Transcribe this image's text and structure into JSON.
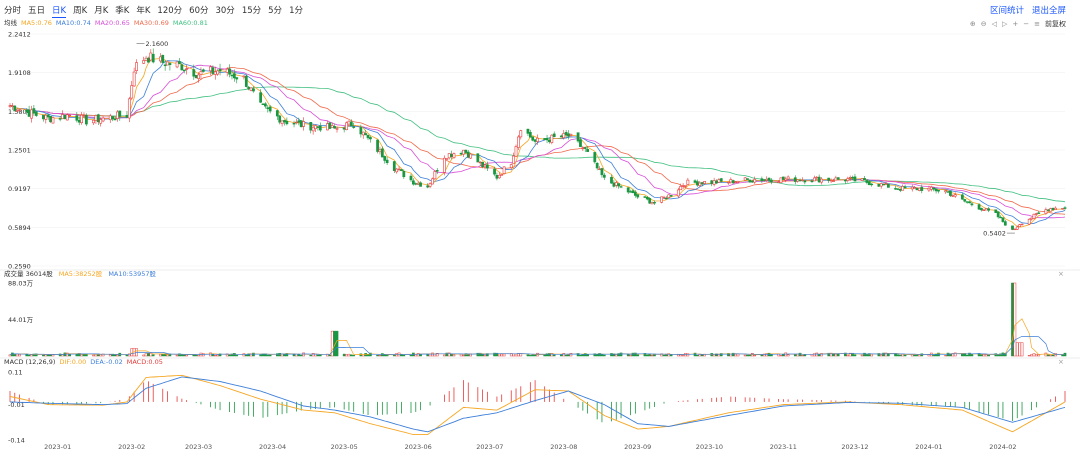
{
  "toolbar": {
    "periods": [
      "分时",
      "五日",
      "日K",
      "周K",
      "月K",
      "季K",
      "年K",
      "120分",
      "60分",
      "30分",
      "15分",
      "5分",
      "1分"
    ],
    "active_period": "日K",
    "actions": [
      "区间统计",
      "退出全屏"
    ],
    "tools": [
      "⊕",
      "⊖",
      "◁",
      "▷",
      "+",
      "−",
      "≡"
    ],
    "adjust_label": "前复权"
  },
  "colors": {
    "up": "#e63a3a",
    "down": "#1a9641",
    "ma5": "#f5a623",
    "ma10": "#3d7fd9",
    "ma20": "#d84fd8",
    "ma30": "#f06a4c",
    "ma60": "#3fbf7f",
    "dif": "#f5a623",
    "dea": "#3d7fd9"
  },
  "ma_legend": {
    "label": "均线",
    "items": [
      {
        "text": "MA5:0.76",
        "color": "#f5a623"
      },
      {
        "text": "MA10:0.74",
        "color": "#3d7fd9"
      },
      {
        "text": "MA20:0.65",
        "color": "#d84fd8"
      },
      {
        "text": "MA30:0.69",
        "color": "#f06a4c"
      },
      {
        "text": "MA60:0.81",
        "color": "#3fbf7f"
      }
    ]
  },
  "volume_legend": {
    "items": [
      {
        "text": "成交量 36014股",
        "color": "#333333"
      },
      {
        "text": "MA5:38252股",
        "color": "#f5a623"
      },
      {
        "text": "MA10:53957股",
        "color": "#3d7fd9"
      }
    ]
  },
  "macd_legend": {
    "items": [
      {
        "text": "MACD (12,26,9)",
        "color": "#333333"
      },
      {
        "text": "DIF:0.00",
        "color": "#f5a623"
      },
      {
        "text": "DEA:-0.02",
        "color": "#3d7fd9"
      },
      {
        "text": "MACD:0.05",
        "color": "#e63a3a"
      }
    ]
  },
  "chart_data": [
    {
      "type": "line",
      "title": "",
      "chart_kind": "candlestick",
      "y_ticks": [
        2.2412,
        1.9108,
        1.5804,
        1.2501,
        0.9197,
        0.5894,
        0.259
      ],
      "y_tick_labels": [
        "2.2412",
        "1.9108",
        "1.5804",
        "1.2501",
        "0.9197",
        "0.5894",
        "0.2590"
      ],
      "ylim": [
        0.259,
        2.2412
      ],
      "annotations": [
        {
          "text": "2.1600",
          "value": 2.16,
          "date": "2023-02-03"
        },
        {
          "text": "0.5402",
          "value": 0.5402,
          "date": "2024-02-06"
        }
      ],
      "x_ticks": [
        "2023-01",
        "2023-02",
        "2023-03",
        "2023-04",
        "2023-05",
        "2023-06",
        "2023-07",
        "2023-08",
        "2023-09",
        "2023-10",
        "2023-11",
        "2023-12",
        "2024-01",
        "2024-02"
      ],
      "close_keypoints": [
        {
          "x": "2022-12-12",
          "y": 1.63
        },
        {
          "x": "2022-12-20",
          "y": 1.57
        },
        {
          "x": "2022-12-28",
          "y": 1.52
        },
        {
          "x": "2023-01-06",
          "y": 1.55
        },
        {
          "x": "2023-01-13",
          "y": 1.5
        },
        {
          "x": "2023-01-20",
          "y": 1.52
        },
        {
          "x": "2023-01-30",
          "y": 1.55
        },
        {
          "x": "2023-02-02",
          "y": 1.95
        },
        {
          "x": "2023-02-07",
          "y": 2.05
        },
        {
          "x": "2023-02-14",
          "y": 2.0
        },
        {
          "x": "2023-02-22",
          "y": 1.97
        },
        {
          "x": "2023-03-01",
          "y": 1.9
        },
        {
          "x": "2023-03-10",
          "y": 1.93
        },
        {
          "x": "2023-03-20",
          "y": 1.86
        },
        {
          "x": "2023-03-27",
          "y": 1.62
        },
        {
          "x": "2023-04-06",
          "y": 1.5
        },
        {
          "x": "2023-04-14",
          "y": 1.46
        },
        {
          "x": "2023-04-21",
          "y": 1.45
        },
        {
          "x": "2023-04-27",
          "y": 1.43
        },
        {
          "x": "2023-05-05",
          "y": 1.48
        },
        {
          "x": "2023-05-12",
          "y": 1.32
        },
        {
          "x": "2023-05-22",
          "y": 1.1
        },
        {
          "x": "2023-05-30",
          "y": 0.98
        },
        {
          "x": "2023-06-05",
          "y": 0.94
        },
        {
          "x": "2023-06-12",
          "y": 1.2
        },
        {
          "x": "2023-06-20",
          "y": 1.25
        },
        {
          "x": "2023-06-29",
          "y": 1.1
        },
        {
          "x": "2023-07-04",
          "y": 1.02
        },
        {
          "x": "2023-07-10",
          "y": 1.15
        },
        {
          "x": "2023-07-14",
          "y": 1.45
        },
        {
          "x": "2023-07-20",
          "y": 1.32
        },
        {
          "x": "2023-07-27",
          "y": 1.35
        },
        {
          "x": "2023-08-03",
          "y": 1.37
        },
        {
          "x": "2023-08-10",
          "y": 1.25
        },
        {
          "x": "2023-08-18",
          "y": 1.0
        },
        {
          "x": "2023-08-25",
          "y": 0.93
        },
        {
          "x": "2023-09-01",
          "y": 0.85
        },
        {
          "x": "2023-09-08",
          "y": 0.8
        },
        {
          "x": "2023-09-14",
          "y": 0.86
        },
        {
          "x": "2023-09-21",
          "y": 0.97
        },
        {
          "x": "2023-10-09",
          "y": 0.98
        },
        {
          "x": "2023-10-20",
          "y": 1.0
        },
        {
          "x": "2023-11-01",
          "y": 1.0
        },
        {
          "x": "2023-11-14",
          "y": 1.0
        },
        {
          "x": "2023-11-28",
          "y": 1.0
        },
        {
          "x": "2023-12-08",
          "y": 0.97
        },
        {
          "x": "2023-12-20",
          "y": 0.92
        },
        {
          "x": "2023-12-29",
          "y": 0.92
        },
        {
          "x": "2024-01-08",
          "y": 0.9
        },
        {
          "x": "2024-01-15",
          "y": 0.82
        },
        {
          "x": "2024-01-22",
          "y": 0.76
        },
        {
          "x": "2024-01-29",
          "y": 0.7
        },
        {
          "x": "2024-02-05",
          "y": 0.56
        },
        {
          "x": "2024-02-08",
          "y": 0.62
        },
        {
          "x": "2024-02-20",
          "y": 0.75
        },
        {
          "x": "2024-02-27",
          "y": 0.76
        }
      ]
    },
    {
      "type": "bar",
      "title": "",
      "series_name": "成交量",
      "y_tick_labels": [
        "88.03万",
        "44.01万"
      ],
      "ylim": [
        0,
        880300
      ],
      "spikes": [
        {
          "x": "2023-02-02",
          "y": 90000
        },
        {
          "x": "2023-04-27",
          "y": 300000
        },
        {
          "x": "2024-02-06",
          "y": 880300
        },
        {
          "x": "2024-02-08",
          "y": 160000
        }
      ]
    },
    {
      "type": "bar",
      "title": "",
      "series_name": "MACD",
      "y_tick_labels": [
        "0.11",
        "-0.01",
        "-0.14"
      ],
      "ylim": [
        -0.14,
        0.11
      ],
      "macd_keypoints": [
        {
          "x": "2022-12-12",
          "dif": 0.02,
          "dea": 0.0
        },
        {
          "x": "2022-12-28",
          "dif": -0.01,
          "dea": -0.005
        },
        {
          "x": "2023-01-20",
          "dif": -0.012,
          "dea": -0.01
        },
        {
          "x": "2023-01-30",
          "dif": 0.0,
          "dea": -0.006
        },
        {
          "x": "2023-02-07",
          "dif": 0.09,
          "dea": 0.05
        },
        {
          "x": "2023-02-22",
          "dif": 0.098,
          "dea": 0.092
        },
        {
          "x": "2023-03-10",
          "dif": 0.06,
          "dea": 0.075
        },
        {
          "x": "2023-03-27",
          "dif": 0.01,
          "dea": 0.04
        },
        {
          "x": "2023-04-14",
          "dif": -0.03,
          "dea": -0.015
        },
        {
          "x": "2023-04-27",
          "dif": -0.04,
          "dea": -0.03
        },
        {
          "x": "2023-05-12",
          "dif": -0.08,
          "dea": -0.055
        },
        {
          "x": "2023-05-30",
          "dif": -0.12,
          "dea": -0.1
        },
        {
          "x": "2023-06-05",
          "dif": -0.12,
          "dea": -0.11
        },
        {
          "x": "2023-06-20",
          "dif": -0.02,
          "dea": -0.06
        },
        {
          "x": "2023-07-04",
          "dif": -0.03,
          "dea": -0.04
        },
        {
          "x": "2023-07-20",
          "dif": 0.045,
          "dea": 0.005
        },
        {
          "x": "2023-08-03",
          "dif": 0.04,
          "dea": 0.04
        },
        {
          "x": "2023-08-18",
          "dif": -0.05,
          "dea": -0.01
        },
        {
          "x": "2023-09-01",
          "dif": -0.1,
          "dea": -0.08
        },
        {
          "x": "2023-09-14",
          "dif": -0.09,
          "dea": -0.09
        },
        {
          "x": "2023-10-09",
          "dif": -0.04,
          "dea": -0.05
        },
        {
          "x": "2023-11-01",
          "dif": -0.01,
          "dea": -0.015
        },
        {
          "x": "2023-11-28",
          "dif": 0.0,
          "dea": -0.002
        },
        {
          "x": "2023-12-20",
          "dif": -0.01,
          "dea": -0.005
        },
        {
          "x": "2024-01-15",
          "dif": -0.03,
          "dea": -0.02
        },
        {
          "x": "2024-02-05",
          "dif": -0.11,
          "dea": -0.075
        },
        {
          "x": "2024-02-27",
          "dif": 0.0,
          "dea": -0.02
        }
      ]
    }
  ],
  "close_marks": [
    "×",
    "×"
  ]
}
